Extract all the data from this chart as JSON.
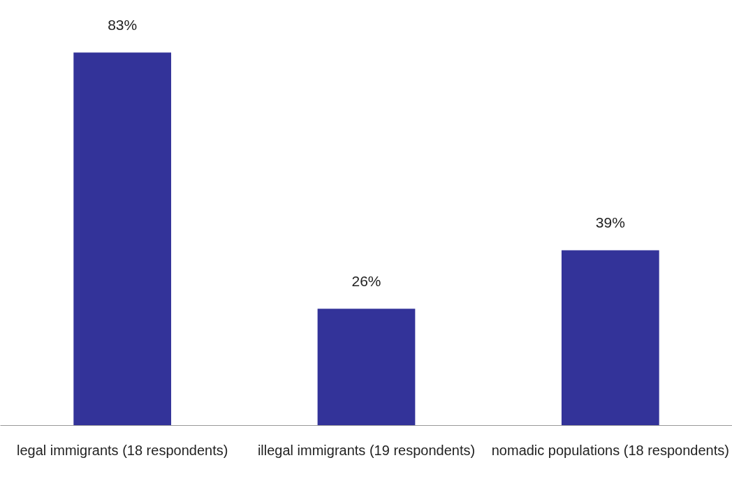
{
  "chart_data": {
    "type": "bar",
    "categories": [
      "legal immigrants (18 respondents)",
      "illegal immigrants (19 respondents)",
      "nomadic populations (18 respondents)"
    ],
    "values": [
      83,
      26,
      39
    ],
    "value_labels": [
      "83%",
      "26%",
      "39%"
    ],
    "color": "#333399"
  }
}
